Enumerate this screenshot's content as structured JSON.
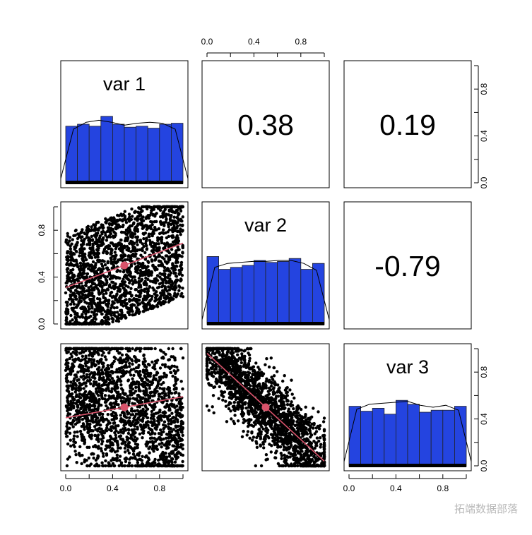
{
  "chart_data": {
    "type": "scatter",
    "title": "",
    "panel_type": "pairs-matrix",
    "variables": [
      "var 1",
      "var 2",
      "var 3"
    ],
    "correlations": [
      {
        "row": 1,
        "col": 2,
        "label": "0.38",
        "value": 0.38
      },
      {
        "row": 1,
        "col": 3,
        "label": "0.19",
        "value": 0.19
      },
      {
        "row": 2,
        "col": 3,
        "label": "-0.79",
        "value": -0.79
      }
    ],
    "axis_range": [
      0,
      1
    ],
    "tick_labels": [
      "0.0",
      "0.4",
      "0.8"
    ],
    "tick_values": [
      0.0,
      0.4,
      0.8
    ],
    "histograms": [
      {
        "variable": "var 1",
        "bins": [
          0,
          0.1,
          0.2,
          0.3,
          0.4,
          0.5,
          0.6,
          0.7,
          0.8,
          0.9,
          1.0
        ],
        "heights": [
          0.58,
          0.6,
          0.58,
          0.68,
          0.6,
          0.57,
          0.58,
          0.56,
          0.6,
          0.61
        ],
        "density": [
          0.05,
          0.55,
          0.62,
          0.64,
          0.62,
          0.59,
          0.61,
          0.62,
          0.61,
          0.55,
          0.05
        ]
      },
      {
        "variable": "var 2",
        "bins": [
          0,
          0.1,
          0.2,
          0.3,
          0.4,
          0.5,
          0.6,
          0.7,
          0.8,
          0.9,
          1.0
        ],
        "heights": [
          0.69,
          0.56,
          0.58,
          0.6,
          0.65,
          0.63,
          0.64,
          0.67,
          0.56,
          0.62
        ],
        "density": [
          0.05,
          0.58,
          0.62,
          0.63,
          0.64,
          0.64,
          0.65,
          0.65,
          0.62,
          0.55,
          0.05
        ]
      },
      {
        "variable": "var 3",
        "bins": [
          0,
          0.1,
          0.2,
          0.3,
          0.4,
          0.5,
          0.6,
          0.7,
          0.8,
          0.9,
          1.0
        ],
        "heights": [
          0.61,
          0.56,
          0.59,
          0.53,
          0.67,
          0.63,
          0.55,
          0.57,
          0.57,
          0.61
        ],
        "density": [
          0.05,
          0.58,
          0.63,
          0.64,
          0.65,
          0.66,
          0.62,
          0.6,
          0.62,
          0.57,
          0.05
        ]
      }
    ],
    "scatter_panels": [
      {
        "row": 2,
        "col": 1,
        "x": "var 1",
        "y": "var 2",
        "relation": "positive",
        "n_points": 2000,
        "center": [
          0.5,
          0.5
        ],
        "fit_line": [
          [
            0,
            0.31
          ],
          [
            1,
            0.69
          ]
        ]
      },
      {
        "row": 3,
        "col": 1,
        "x": "var 1",
        "y": "var 3",
        "relation": "weak positive",
        "n_points": 2000,
        "center": [
          0.5,
          0.5
        ],
        "fit_line": [
          [
            0,
            0.41
          ],
          [
            1,
            0.59
          ]
        ]
      },
      {
        "row": 3,
        "col": 2,
        "x": "var 2",
        "y": "var 3",
        "relation": "negative",
        "n_points": 2000,
        "center": [
          0.5,
          0.5
        ],
        "fit_line": [
          [
            0,
            0.96
          ],
          [
            1,
            0.04
          ]
        ]
      }
    ],
    "colors": {
      "histogram_bar": "#2444e0",
      "points": "#000000",
      "fit_line": "#d9536b",
      "center_point": "#d9536b"
    },
    "grid": false
  },
  "watermark": "拓端数据部落"
}
